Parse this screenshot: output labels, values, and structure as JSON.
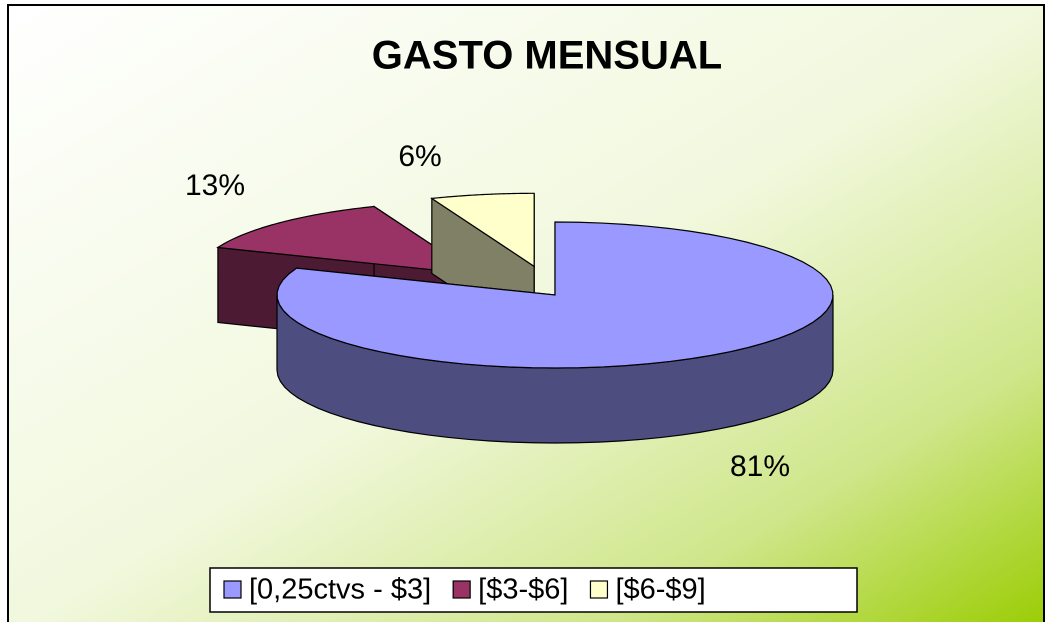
{
  "chart_data": {
    "type": "pie",
    "title": "GASTO MENSUAL",
    "categories": [
      "[0,25ctvs - $3]",
      "[$3-$6]",
      "[$6-$9]"
    ],
    "values": [
      81,
      13,
      6
    ],
    "value_labels": [
      "81%",
      "13%",
      "6%"
    ],
    "colors": [
      "#9999ff",
      "#993366",
      "#ffffcc"
    ]
  }
}
